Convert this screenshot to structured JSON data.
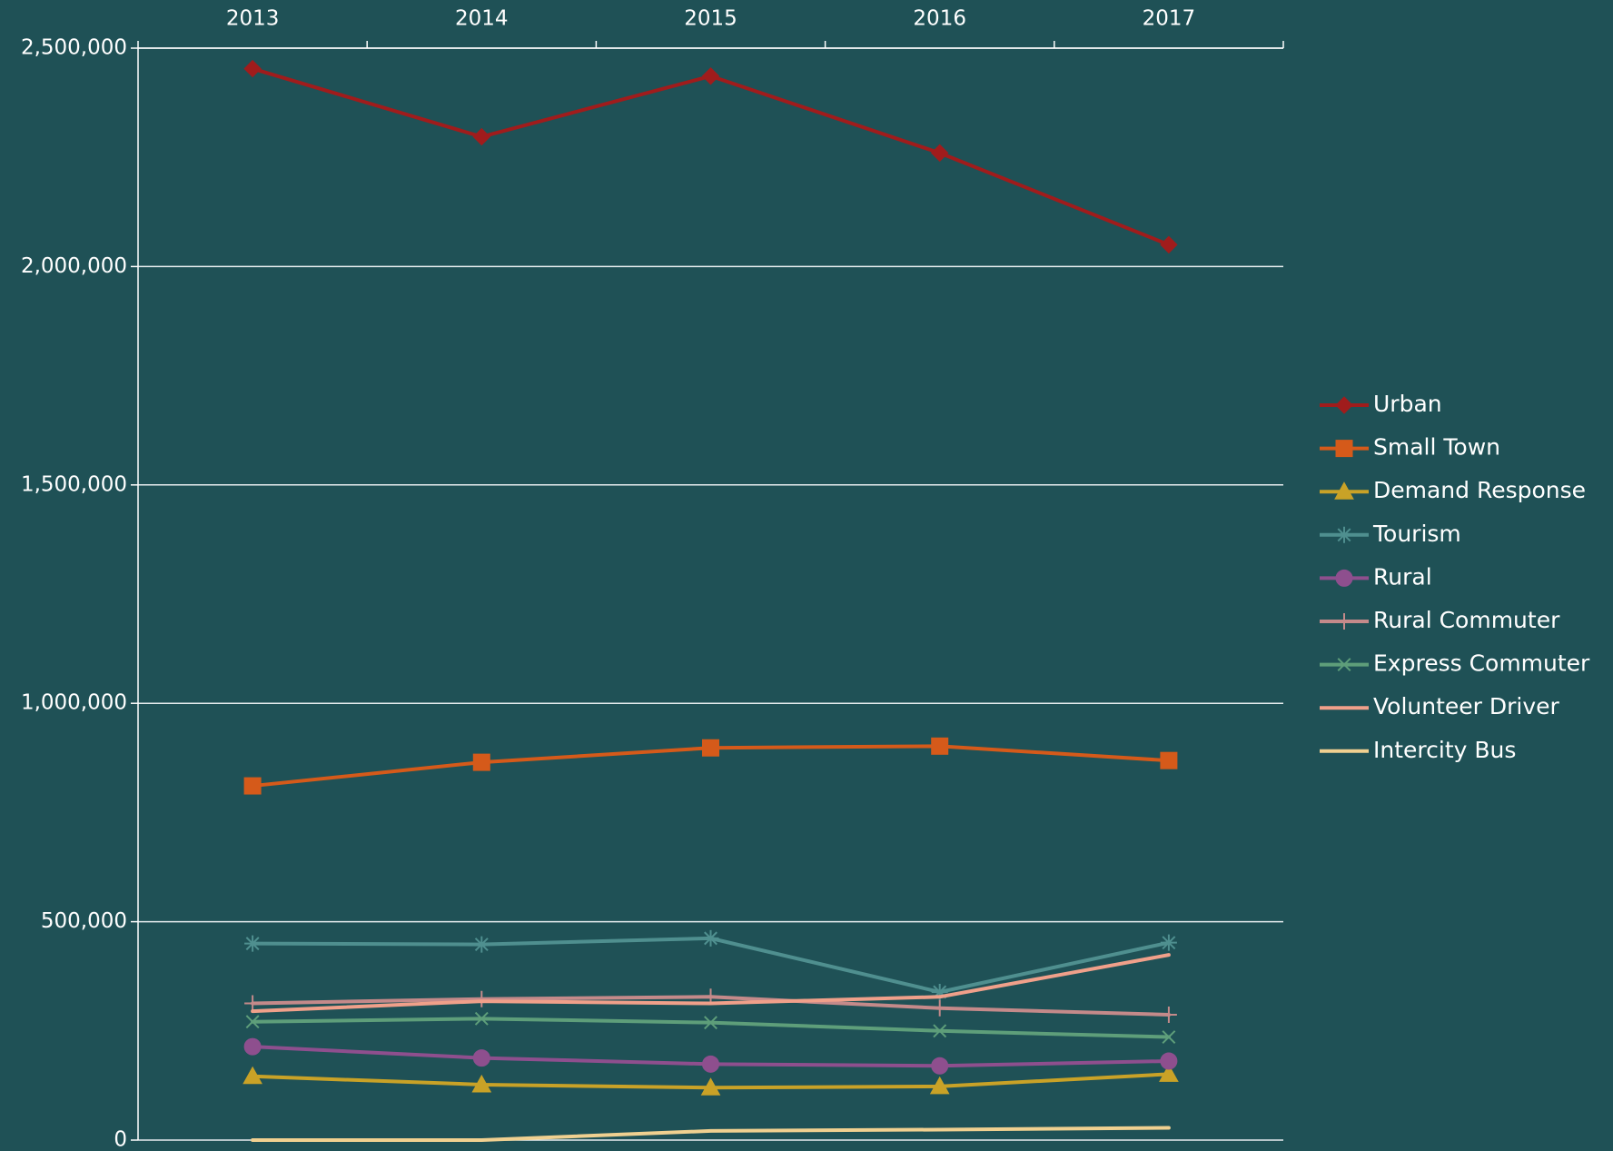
{
  "chart_data": {
    "type": "line",
    "categories": [
      "2013",
      "2014",
      "2015",
      "2016",
      "2017"
    ],
    "ylim": [
      0,
      2500000
    ],
    "yticks": [
      0,
      {
        "value": 500000,
        "label": "500,000"
      },
      {
        "value": 1000000,
        "label": "1,000,000"
      },
      {
        "value": 1500000,
        "label": "1,500,000"
      },
      {
        "value": 2000000,
        "label": "2,000,000"
      },
      {
        "value": 2500000,
        "label": "2,500,000"
      }
    ],
    "grid": true,
    "legend": "right",
    "series": [
      {
        "name": "Urban",
        "color": "#a01c1c",
        "marker": "diamond",
        "values": [
          2453000,
          2297000,
          2436000,
          2260000,
          2050000
        ]
      },
      {
        "name": "Small Town",
        "color": "#d55a1a",
        "marker": "square",
        "values": [
          811000,
          865000,
          898000,
          902000,
          869000
        ]
      },
      {
        "name": "Demand Response",
        "color": "#c9a227",
        "marker": "triangle",
        "values": [
          146000,
          127000,
          120000,
          123000,
          151000
        ]
      },
      {
        "name": "Tourism",
        "color": "#4f8f8f",
        "marker": "asterisk",
        "values": [
          450000,
          448000,
          462000,
          339000,
          452000
        ]
      },
      {
        "name": "Rural",
        "color": "#8e4f8e",
        "marker": "circle",
        "values": [
          214000,
          188000,
          174000,
          170000,
          181000
        ]
      },
      {
        "name": "Rural Commuter",
        "color": "#c48a8a",
        "marker": "plus",
        "values": [
          313000,
          323000,
          328000,
          302000,
          287000
        ]
      },
      {
        "name": "Express Commuter",
        "color": "#5e9e7a",
        "marker": "x",
        "values": [
          271000,
          278000,
          269000,
          250000,
          236000
        ]
      },
      {
        "name": "Volunteer Driver",
        "color": "#f0a08a",
        "marker": "none",
        "values": [
          295000,
          318000,
          313000,
          328000,
          424000
        ]
      },
      {
        "name": "Intercity Bus",
        "color": "#f0d090",
        "marker": "none",
        "values": [
          0,
          0,
          21000,
          24000,
          28000
        ]
      }
    ]
  }
}
